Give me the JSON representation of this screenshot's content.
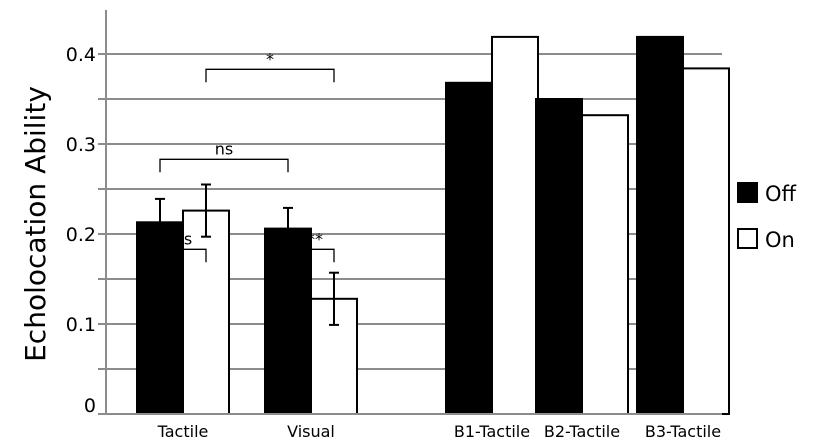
{
  "chart_data": {
    "type": "bar",
    "title": "",
    "xlabel": "",
    "ylabel": "Echolocation Ability",
    "ylim": [
      0,
      0.44
    ],
    "yticks": [
      0,
      0.1,
      0.2,
      0.3,
      0.4
    ],
    "ytick_labels": [
      "0",
      "0.1",
      "0.2",
      "0.3",
      "0.4"
    ],
    "grid": true,
    "legend_position": "right",
    "categories": [
      "Tactile",
      "Visual",
      "B1-Tactile",
      "B2-Tactile",
      "B3-Tactile"
    ],
    "series": [
      {
        "name": "Off",
        "color": "#000000",
        "values": [
          0.213,
          0.206,
          0.368,
          0.35,
          0.419
        ],
        "errors": [
          0.026,
          0.023,
          null,
          null,
          null
        ]
      },
      {
        "name": "On",
        "color": "#ffffff",
        "values": [
          0.226,
          0.128,
          0.419,
          0.332,
          0.384
        ],
        "errors": [
          0.029,
          0.029,
          null,
          null,
          null
        ]
      }
    ],
    "annotations": [
      {
        "label": "ns",
        "from": "Tactile-Off",
        "to": "Tactile-On",
        "y": 0.183
      },
      {
        "label": "***",
        "from": "Visual-Off",
        "to": "Visual-On",
        "y": 0.183
      },
      {
        "label": "ns",
        "from": "Tactile-Off",
        "to": "Visual-Off",
        "y": 0.283
      },
      {
        "label": "*",
        "from": "Tactile-On",
        "to": "Visual-On",
        "y": 0.383
      }
    ]
  }
}
